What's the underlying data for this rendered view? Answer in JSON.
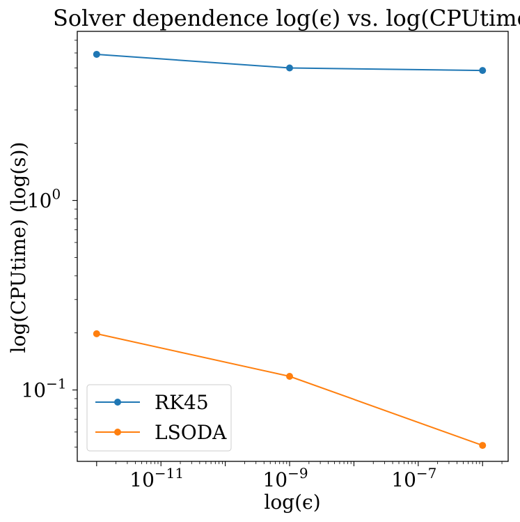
{
  "chart_data": {
    "type": "line",
    "title": "Solver dependence log(ϵ) vs. log(CPUtime)",
    "xlabel": "log(ϵ)",
    "ylabel": "log(CPUtime) (log(s))",
    "xscale": "log",
    "yscale": "log",
    "xlim": [
      5e-13,
      2.5e-06
    ],
    "ylim": [
      0.042,
      7.8
    ],
    "grid": false,
    "legend_position": "lower-left",
    "x_ticks": [
      {
        "value": 1e-11,
        "base": "10",
        "exp": "−11"
      },
      {
        "value": 1e-09,
        "base": "10",
        "exp": "−9"
      },
      {
        "value": 1e-07,
        "base": "10",
        "exp": "−7"
      }
    ],
    "y_ticks": [
      {
        "value": 1,
        "base": "10",
        "exp": "0"
      },
      {
        "value": 0.1,
        "base": "10",
        "exp": "−1"
      }
    ],
    "x": [
      1e-12,
      1e-09,
      1e-06
    ],
    "series": [
      {
        "name": "RK45",
        "color": "#1f77b4",
        "values": [
          5.9,
          5.0,
          4.85
        ]
      },
      {
        "name": "LSODA",
        "color": "#ff7f0e",
        "values": [
          0.198,
          0.118,
          0.051
        ]
      }
    ]
  }
}
